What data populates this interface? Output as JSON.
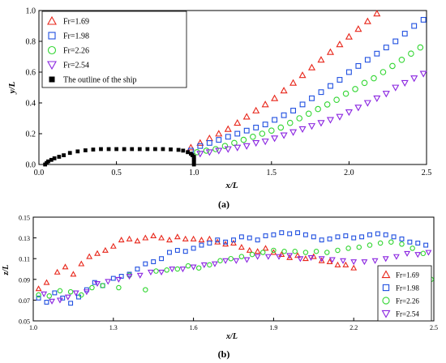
{
  "colors": {
    "Fr=1.69": "#e8261a",
    "Fr=1.98": "#1f4fe0",
    "Fr=2.26": "#33d633",
    "Fr=2.54": "#8a24e0",
    "ship": "#000000"
  },
  "chart_data": [
    {
      "type": "scatter",
      "panel_label": "(a)",
      "xlabel": "x/L",
      "ylabel": "y/L",
      "xlim": [
        0.0,
        2.5
      ],
      "ylim": [
        0.0,
        1.0
      ],
      "xticks": [
        "0.0",
        "0.5",
        "1.0",
        "1.5",
        "2.0",
        "2.5"
      ],
      "yticks": [
        "0.0",
        "0.2",
        "0.4",
        "0.6",
        "0.8",
        "1.0"
      ],
      "legend_position": "top-left",
      "series": [
        {
          "name": "Fr=1.69",
          "marker": "triangle-up",
          "x": [
            0.98,
            1.04,
            1.1,
            1.16,
            1.22,
            1.28,
            1.34,
            1.4,
            1.46,
            1.52,
            1.58,
            1.64,
            1.7,
            1.76,
            1.82,
            1.88,
            1.94,
            2.0,
            2.06,
            2.12,
            2.18
          ],
          "y": [
            0.11,
            0.14,
            0.17,
            0.2,
            0.23,
            0.27,
            0.31,
            0.35,
            0.39,
            0.43,
            0.48,
            0.53,
            0.58,
            0.63,
            0.68,
            0.73,
            0.78,
            0.83,
            0.88,
            0.93,
            0.98
          ]
        },
        {
          "name": "Fr=1.98",
          "marker": "square",
          "x": [
            0.98,
            1.04,
            1.1,
            1.16,
            1.22,
            1.28,
            1.34,
            1.4,
            1.46,
            1.52,
            1.58,
            1.64,
            1.7,
            1.76,
            1.82,
            1.88,
            1.94,
            2.0,
            2.06,
            2.12,
            2.18,
            2.24,
            2.3,
            2.36,
            2.42,
            2.48
          ],
          "y": [
            0.09,
            0.12,
            0.14,
            0.16,
            0.18,
            0.2,
            0.22,
            0.24,
            0.26,
            0.29,
            0.32,
            0.35,
            0.39,
            0.43,
            0.47,
            0.51,
            0.55,
            0.6,
            0.64,
            0.68,
            0.72,
            0.76,
            0.8,
            0.85,
            0.9,
            0.94
          ]
        },
        {
          "name": "Fr=2.26",
          "marker": "circle",
          "x": [
            1.02,
            1.08,
            1.14,
            1.2,
            1.26,
            1.32,
            1.38,
            1.44,
            1.5,
            1.56,
            1.62,
            1.68,
            1.74,
            1.8,
            1.86,
            1.92,
            1.98,
            2.04,
            2.1,
            2.16,
            2.22,
            2.28,
            2.34,
            2.4,
            2.46
          ],
          "y": [
            0.08,
            0.09,
            0.1,
            0.12,
            0.14,
            0.16,
            0.18,
            0.2,
            0.22,
            0.24,
            0.27,
            0.3,
            0.33,
            0.36,
            0.39,
            0.42,
            0.46,
            0.49,
            0.53,
            0.56,
            0.6,
            0.64,
            0.68,
            0.72,
            0.76
          ]
        },
        {
          "name": "Fr=2.54",
          "marker": "triangle-down",
          "x": [
            1.04,
            1.1,
            1.16,
            1.22,
            1.28,
            1.34,
            1.4,
            1.46,
            1.52,
            1.58,
            1.64,
            1.7,
            1.76,
            1.82,
            1.88,
            1.94,
            2.0,
            2.06,
            2.12,
            2.18,
            2.24,
            2.3,
            2.36,
            2.42,
            2.48
          ],
          "y": [
            0.07,
            0.08,
            0.09,
            0.1,
            0.11,
            0.12,
            0.14,
            0.15,
            0.17,
            0.19,
            0.21,
            0.23,
            0.25,
            0.27,
            0.29,
            0.31,
            0.34,
            0.37,
            0.4,
            0.43,
            0.46,
            0.5,
            0.53,
            0.56,
            0.59
          ]
        },
        {
          "name": "The outline of the ship",
          "marker": "filled-square",
          "x": [
            0.04,
            0.05,
            0.06,
            0.08,
            0.1,
            0.13,
            0.16,
            0.2,
            0.25,
            0.3,
            0.35,
            0.4,
            0.45,
            0.5,
            0.55,
            0.6,
            0.65,
            0.7,
            0.75,
            0.8,
            0.85,
            0.9,
            0.93,
            0.96,
            0.98,
            0.99,
            1.0,
            1.0,
            1.0,
            1.0,
            1.0,
            1.0
          ],
          "y": [
            0.0,
            0.01,
            0.02,
            0.03,
            0.04,
            0.05,
            0.06,
            0.075,
            0.085,
            0.092,
            0.097,
            0.1,
            0.1,
            0.1,
            0.1,
            0.1,
            0.1,
            0.1,
            0.1,
            0.1,
            0.098,
            0.095,
            0.09,
            0.08,
            0.07,
            0.06,
            0.05,
            0.04,
            0.03,
            0.02,
            0.01,
            0.0
          ]
        }
      ]
    },
    {
      "type": "scatter",
      "panel_label": "(b)",
      "xlabel": "x/L",
      "ylabel": "z/L",
      "xlim": [
        1.0,
        2.5
      ],
      "ylim": [
        0.05,
        0.15
      ],
      "xticks": [
        "1.0",
        "1.3",
        "1.6",
        "1.9",
        "2.2",
        "2.5"
      ],
      "yticks": [
        "0.05",
        "0.07",
        "0.09",
        "0.11",
        "0.13",
        "0.15"
      ],
      "legend_position": "bottom-right",
      "series": [
        {
          "name": "Fr=1.69",
          "marker": "triangle-up",
          "x": [
            1.02,
            1.05,
            1.09,
            1.12,
            1.15,
            1.18,
            1.21,
            1.24,
            1.27,
            1.3,
            1.33,
            1.36,
            1.39,
            1.42,
            1.45,
            1.48,
            1.51,
            1.54,
            1.57,
            1.6,
            1.63,
            1.66,
            1.69,
            1.72,
            1.75,
            1.78,
            1.81,
            1.84,
            1.87,
            1.9,
            1.93,
            1.96,
            1.99,
            2.02,
            2.05,
            2.08,
            2.11,
            2.14,
            2.17,
            2.2
          ],
          "y": [
            0.081,
            0.087,
            0.097,
            0.102,
            0.095,
            0.105,
            0.112,
            0.115,
            0.118,
            0.122,
            0.128,
            0.129,
            0.127,
            0.13,
            0.132,
            0.13,
            0.128,
            0.131,
            0.129,
            0.129,
            0.128,
            0.129,
            0.126,
            0.124,
            0.125,
            0.121,
            0.118,
            0.117,
            0.12,
            0.116,
            0.114,
            0.111,
            0.113,
            0.11,
            0.112,
            0.108,
            0.107,
            0.104,
            0.104,
            0.101
          ]
        },
        {
          "name": "Fr=1.98",
          "marker": "square",
          "x": [
            1.02,
            1.05,
            1.08,
            1.11,
            1.14,
            1.17,
            1.2,
            1.23,
            1.26,
            1.3,
            1.33,
            1.36,
            1.39,
            1.42,
            1.45,
            1.48,
            1.51,
            1.54,
            1.57,
            1.6,
            1.63,
            1.66,
            1.69,
            1.72,
            1.75,
            1.78,
            1.81,
            1.84,
            1.87,
            1.9,
            1.93,
            1.96,
            1.99,
            2.02,
            2.05,
            2.08,
            2.11,
            2.14,
            2.17,
            2.2,
            2.23,
            2.26,
            2.29,
            2.32,
            2.35,
            2.38,
            2.41,
            2.44,
            2.47
          ],
          "y": [
            0.072,
            0.068,
            0.077,
            0.072,
            0.067,
            0.073,
            0.08,
            0.087,
            0.084,
            0.091,
            0.093,
            0.095,
            0.1,
            0.105,
            0.107,
            0.11,
            0.116,
            0.118,
            0.117,
            0.12,
            0.123,
            0.125,
            0.128,
            0.126,
            0.128,
            0.131,
            0.13,
            0.128,
            0.132,
            0.133,
            0.135,
            0.134,
            0.135,
            0.133,
            0.131,
            0.128,
            0.129,
            0.131,
            0.132,
            0.13,
            0.131,
            0.133,
            0.134,
            0.133,
            0.131,
            0.129,
            0.126,
            0.125,
            0.123
          ]
        },
        {
          "name": "Fr=2.26",
          "marker": "circle",
          "x": [
            1.02,
            1.06,
            1.1,
            1.14,
            1.18,
            1.22,
            1.26,
            1.32,
            1.36,
            1.42,
            1.46,
            1.5,
            1.54,
            1.58,
            1.62,
            1.66,
            1.7,
            1.74,
            1.78,
            1.82,
            1.86,
            1.9,
            1.94,
            1.98,
            2.02,
            2.06,
            2.1,
            2.14,
            2.18,
            2.22,
            2.26,
            2.3,
            2.34,
            2.38,
            2.42,
            2.46,
            2.49
          ],
          "y": [
            0.075,
            0.074,
            0.079,
            0.078,
            0.075,
            0.082,
            0.084,
            0.082,
            0.094,
            0.08,
            0.098,
            0.099,
            0.1,
            0.103,
            0.101,
            0.104,
            0.108,
            0.11,
            0.112,
            0.114,
            0.116,
            0.118,
            0.117,
            0.117,
            0.116,
            0.117,
            0.116,
            0.118,
            0.12,
            0.121,
            0.123,
            0.125,
            0.126,
            0.124,
            0.12,
            0.115,
            0.09
          ]
        },
        {
          "name": "Fr=2.54",
          "marker": "triangle-down",
          "x": [
            1.04,
            1.07,
            1.1,
            1.13,
            1.16,
            1.2,
            1.24,
            1.28,
            1.32,
            1.36,
            1.4,
            1.44,
            1.48,
            1.52,
            1.56,
            1.6,
            1.64,
            1.68,
            1.72,
            1.76,
            1.8,
            1.84,
            1.88,
            1.92,
            1.96,
            2.0,
            2.04,
            2.08,
            2.12,
            2.16,
            2.2,
            2.24,
            2.28,
            2.32,
            2.36,
            2.4,
            2.44,
            2.48
          ],
          "y": [
            0.076,
            0.069,
            0.07,
            0.073,
            0.077,
            0.078,
            0.086,
            0.088,
            0.09,
            0.093,
            0.094,
            0.097,
            0.097,
            0.1,
            0.1,
            0.102,
            0.104,
            0.105,
            0.108,
            0.108,
            0.109,
            0.112,
            0.112,
            0.112,
            0.113,
            0.11,
            0.111,
            0.11,
            0.109,
            0.108,
            0.107,
            0.107,
            0.108,
            0.11,
            0.112,
            0.115,
            0.114,
            0.116
          ]
        }
      ]
    }
  ]
}
